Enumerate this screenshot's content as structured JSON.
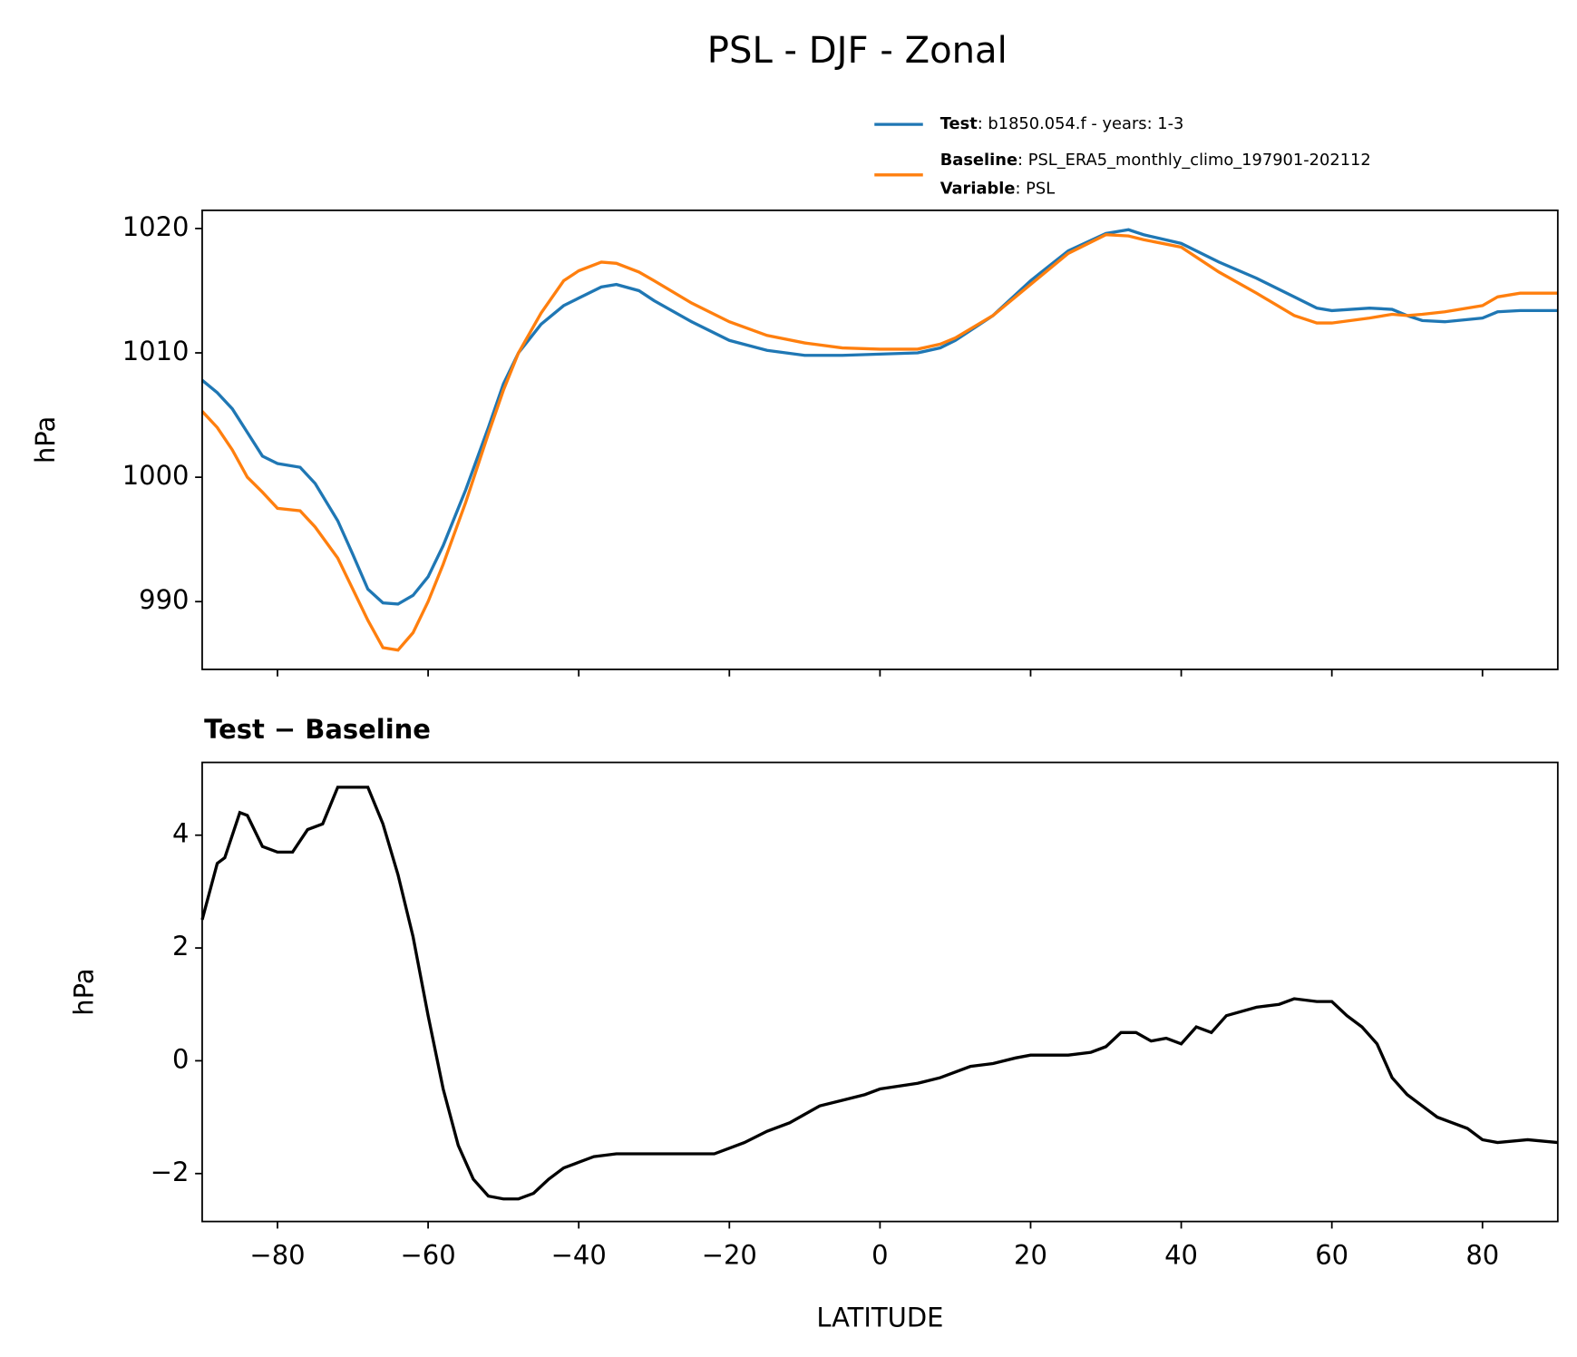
{
  "title": "PSL - DJF - Zonal",
  "chart_data": [
    {
      "type": "line",
      "ylabel": "hPa",
      "x": [
        -90,
        -88,
        -86,
        -84,
        -82,
        -80,
        -77,
        -75,
        -72,
        -70,
        -68,
        -66,
        -64,
        -62,
        -60,
        -58,
        -55,
        -52,
        -50,
        -48,
        -45,
        -42,
        -40,
        -37,
        -35,
        -32,
        -30,
        -25,
        -20,
        -15,
        -10,
        -5,
        0,
        5,
        8,
        10,
        15,
        20,
        25,
        30,
        33,
        35,
        40,
        45,
        50,
        55,
        58,
        60,
        65,
        68,
        70,
        72,
        75,
        80,
        82,
        85,
        90
      ],
      "series": [
        {
          "name": "Test",
          "detail": ": b1850.054.f - years: 1-3",
          "color": "#1f77b4",
          "values": [
            1007.8,
            1006.8,
            1005.5,
            1003.6,
            1001.7,
            1001.1,
            1000.8,
            999.5,
            996.5,
            993.8,
            991,
            989.9,
            989.8,
            990.5,
            992,
            994.5,
            999,
            1004,
            1007.5,
            1010,
            1012.3,
            1013.8,
            1014.4,
            1015.3,
            1015.5,
            1015,
            1014.2,
            1012.5,
            1011,
            1010.2,
            1009.8,
            1009.8,
            1009.9,
            1010,
            1010.4,
            1011,
            1013,
            1015.8,
            1018.2,
            1019.6,
            1019.9,
            1019.5,
            1018.8,
            1017.3,
            1016,
            1014.5,
            1013.6,
            1013.4,
            1013.6,
            1013.5,
            1013,
            1012.6,
            1012.5,
            1012.8,
            1013.3,
            1013.4,
            1013.4
          ]
        },
        {
          "name": "Baseline",
          "detail": ": PSL_ERA5_monthly_climo_197901-202112",
          "color": "#ff7f0e",
          "values": [
            1005.3,
            1004,
            1002.2,
            1000,
            998.8,
            997.5,
            997.3,
            996,
            993.5,
            991,
            988.5,
            986.3,
            986.1,
            987.5,
            990,
            993,
            998,
            1003.5,
            1007,
            1010,
            1013.2,
            1015.8,
            1016.6,
            1017.3,
            1017.2,
            1016.5,
            1015.8,
            1014,
            1012.5,
            1011.4,
            1010.8,
            1010.4,
            1010.3,
            1010.3,
            1010.7,
            1011.2,
            1013,
            1015.5,
            1018,
            1019.5,
            1019.4,
            1019.1,
            1018.5,
            1016.5,
            1014.8,
            1013,
            1012.4,
            1012.4,
            1012.8,
            1013.1,
            1013,
            1013.1,
            1013.3,
            1013.8,
            1014.5,
            1014.8,
            1014.8
          ]
        }
      ],
      "legend_extra": {
        "name": "Variable",
        "detail": ": PSL"
      },
      "xlim": [
        -90,
        90
      ],
      "xticks": [
        -80,
        -60,
        -40,
        -20,
        0,
        20,
        40,
        60,
        80
      ],
      "show_xtick_labels": false,
      "ylim": [
        984.55,
        1021.46
      ],
      "yticks": [
        990,
        1000,
        1010,
        1020
      ],
      "grid": false
    },
    {
      "type": "line",
      "title": "Test − Baseline",
      "xlabel": "LATITUDE",
      "ylabel": "hPa",
      "color": "#000000",
      "x": [
        -90,
        -88,
        -87,
        -85,
        -84,
        -82,
        -80,
        -78,
        -76,
        -74,
        -72,
        -70,
        -68,
        -66,
        -64,
        -62,
        -60,
        -58,
        -56,
        -54,
        -52,
        -50,
        -48,
        -46,
        -44,
        -42,
        -40,
        -38,
        -35,
        -30,
        -25,
        -22,
        -20,
        -18,
        -15,
        -12,
        -10,
        -8,
        -5,
        -2,
        0,
        5,
        8,
        12,
        15,
        18,
        20,
        25,
        28,
        30,
        32,
        34,
        36,
        38,
        40,
        42,
        44,
        46,
        50,
        53,
        55,
        58,
        60,
        62,
        64,
        66,
        68,
        70,
        72,
        74,
        76,
        78,
        80,
        82,
        86,
        90
      ],
      "values": [
        2.5,
        3.5,
        3.6,
        4.4,
        4.35,
        3.8,
        3.7,
        3.7,
        4.1,
        4.2,
        4.85,
        4.85,
        4.85,
        4.2,
        3.3,
        2.2,
        0.8,
        -0.5,
        -1.5,
        -2.1,
        -2.4,
        -2.45,
        -2.45,
        -2.35,
        -2.1,
        -1.9,
        -1.8,
        -1.7,
        -1.65,
        -1.65,
        -1.65,
        -1.65,
        -1.55,
        -1.45,
        -1.25,
        -1.1,
        -0.95,
        -0.8,
        -0.7,
        -0.6,
        -0.5,
        -0.4,
        -0.3,
        -0.1,
        -0.05,
        0.05,
        0.1,
        0.1,
        0.15,
        0.25,
        0.5,
        0.5,
        0.35,
        0.4,
        0.3,
        0.6,
        0.5,
        0.8,
        0.95,
        1.0,
        1.1,
        1.05,
        1.05,
        0.8,
        0.6,
        0.3,
        -0.3,
        -0.6,
        -0.8,
        -1.0,
        -1.1,
        -1.2,
        -1.4,
        -1.45,
        -1.4,
        -1.45
      ],
      "xlim": [
        -90,
        90
      ],
      "xticks": [
        {
          "value": -80,
          "label": "−80"
        },
        {
          "value": -60,
          "label": "−60"
        },
        {
          "value": -40,
          "label": "−40"
        },
        {
          "value": -20,
          "label": "−20"
        },
        0,
        20,
        40,
        60,
        80
      ],
      "ylim": [
        -2.85,
        5.29
      ],
      "yticks": [
        {
          "value": -2,
          "label": "−2"
        },
        0,
        2,
        4
      ],
      "grid": false
    }
  ]
}
